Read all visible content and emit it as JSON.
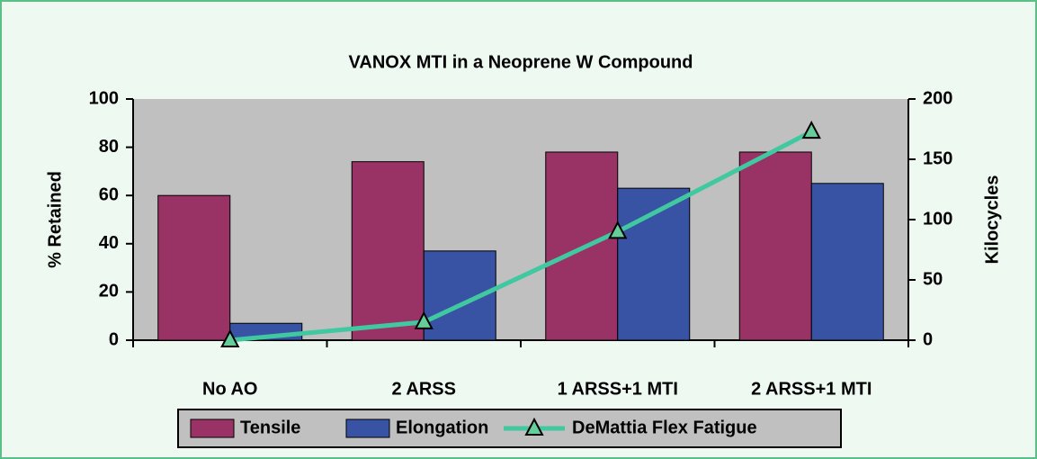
{
  "chart_data": {
    "type": "bar",
    "title": "VANOX MTI in a Neoprene W Compound",
    "categories": [
      "No AO",
      "2 ARSS",
      "1 ARSS+1 MTI",
      "2 ARSS+1 MTI"
    ],
    "series": [
      {
        "name": "Tensile",
        "type": "bar",
        "color": "#993366",
        "values": [
          60,
          74,
          78,
          78
        ]
      },
      {
        "name": "Elongation",
        "type": "bar",
        "color": "#3953a4",
        "values": [
          7,
          37,
          63,
          65
        ]
      },
      {
        "name": "DeMattia Flex Fatigue",
        "type": "line",
        "axis": "y2",
        "color": "#40c8a0",
        "values": [
          0,
          15,
          90,
          173
        ]
      }
    ],
    "ylabel": "% Retained",
    "y2label": "Kilocycles",
    "ylim": [
      0,
      100
    ],
    "yticks": [
      0,
      20,
      40,
      60,
      80,
      100
    ],
    "y2lim": [
      0,
      200
    ],
    "y2ticks": [
      0,
      50,
      100,
      150,
      200
    ],
    "grid": false,
    "legend": "bottom"
  }
}
